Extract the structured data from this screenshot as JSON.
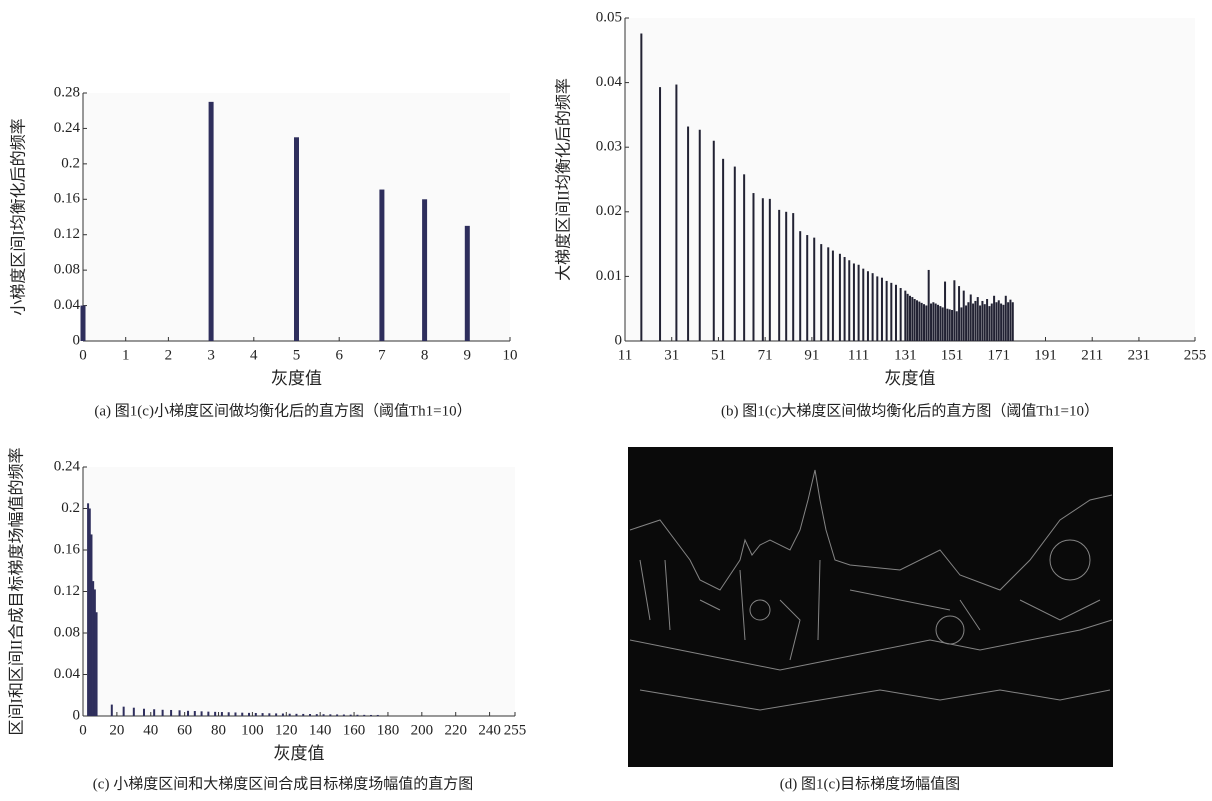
{
  "chart_data": [
    {
      "type": "bar",
      "title": "(a) 图1(c)小梯度区间做均衡化后的直方图（阈值Th1=10）",
      "xlabel": "灰度值",
      "ylabel": "小梯度区间I均衡化后的频率",
      "x": [
        0,
        3,
        5,
        7,
        8,
        9
      ],
      "values": [
        0.04,
        0.27,
        0.23,
        0.171,
        0.16,
        0.13
      ],
      "color": "#2e2e5c",
      "xlim": [
        0,
        10
      ],
      "xticks": [
        0,
        1,
        2,
        3,
        4,
        5,
        6,
        7,
        8,
        9,
        10
      ],
      "ylim": [
        0,
        0.28
      ],
      "yticks": [
        0,
        0.04,
        0.08,
        0.12,
        0.16,
        0.2,
        0.24,
        0.28
      ]
    },
    {
      "type": "bar",
      "title": "(b) 图1(c)大梯度区间做均衡化后的直方图（阈值Th1=10）",
      "xlabel": "灰度值",
      "ylabel": "大梯度区间II均衡化后的频率",
      "x": [
        18,
        26,
        33,
        38,
        43,
        49,
        53,
        58,
        62,
        66,
        70,
        73,
        77,
        80,
        83,
        86,
        89,
        92,
        95,
        98,
        100,
        103,
        105,
        107,
        109,
        111,
        113,
        115,
        117,
        119,
        121,
        123,
        125,
        127,
        129,
        131,
        132,
        133,
        134,
        135,
        136,
        137,
        138,
        139,
        140,
        141,
        142,
        143,
        144,
        145,
        146,
        147,
        148,
        149,
        150,
        151,
        152,
        153,
        154,
        155,
        156,
        157,
        158,
        159,
        160,
        161,
        162,
        163,
        164,
        165,
        166,
        167,
        168,
        169,
        170,
        171,
        172,
        173,
        174,
        175,
        176,
        177
      ],
      "values": [
        0.0476,
        0.0393,
        0.0397,
        0.0332,
        0.0327,
        0.031,
        0.0282,
        0.027,
        0.0258,
        0.0229,
        0.0221,
        0.022,
        0.0203,
        0.02,
        0.0198,
        0.017,
        0.0164,
        0.016,
        0.015,
        0.0145,
        0.014,
        0.0135,
        0.013,
        0.0125,
        0.012,
        0.0118,
        0.0112,
        0.0108,
        0.0105,
        0.01,
        0.0098,
        0.0093,
        0.009,
        0.0087,
        0.0082,
        0.0078,
        0.0073,
        0.007,
        0.0068,
        0.0065,
        0.0063,
        0.0061,
        0.0059,
        0.0057,
        0.0055,
        0.011,
        0.0058,
        0.006,
        0.0058,
        0.0056,
        0.0054,
        0.0052,
        0.0092,
        0.005,
        0.0049,
        0.0048,
        0.0094,
        0.0046,
        0.0085,
        0.0052,
        0.0078,
        0.0055,
        0.006,
        0.0072,
        0.0058,
        0.0062,
        0.0068,
        0.0055,
        0.0062,
        0.0057,
        0.0065,
        0.0054,
        0.0058,
        0.007,
        0.006,
        0.0063,
        0.0058,
        0.0056,
        0.007,
        0.006,
        0.0064,
        0.006
      ],
      "color": "#222233",
      "xlim": [
        11,
        255
      ],
      "xticks": [
        11,
        31,
        51,
        71,
        91,
        111,
        131,
        151,
        171,
        191,
        211,
        231,
        255
      ],
      "ylim": [
        0,
        0.05
      ],
      "yticks": [
        0,
        0.01,
        0.02,
        0.03,
        0.04,
        0.05
      ]
    },
    {
      "type": "bar",
      "title": "(c) 小梯度区间和大梯度区间合成目标梯度场幅值的直方图",
      "xlabel": "灰度值",
      "ylabel": "区间I和区间II合成目标梯度场幅值的频率",
      "x": [
        3,
        4,
        5,
        6,
        7,
        8,
        17,
        24,
        30,
        36,
        42,
        47,
        52,
        57,
        62,
        66,
        70,
        74,
        78,
        82,
        86,
        90,
        94,
        98,
        102,
        106,
        110,
        114,
        118,
        122,
        126,
        130,
        134,
        138,
        142,
        146,
        150,
        154,
        158,
        162,
        166,
        170,
        174
      ],
      "values": [
        0.205,
        0.2,
        0.175,
        0.13,
        0.122,
        0.1,
        0.011,
        0.009,
        0.008,
        0.007,
        0.0065,
        0.006,
        0.0058,
        0.0055,
        0.005,
        0.0048,
        0.0045,
        0.0042,
        0.004,
        0.0038,
        0.0036,
        0.0034,
        0.0032,
        0.003,
        0.0029,
        0.0028,
        0.0026,
        0.0025,
        0.0024,
        0.0022,
        0.0021,
        0.002,
        0.0019,
        0.0018,
        0.0017,
        0.0016,
        0.0015,
        0.0014,
        0.0013,
        0.0012,
        0.0011,
        0.001,
        0.001
      ],
      "color": "#2e2e5c",
      "xlim": [
        0,
        255
      ],
      "xticks": [
        0,
        20,
        40,
        60,
        80,
        100,
        120,
        140,
        160,
        180,
        200,
        220,
        240,
        255
      ],
      "ylim": [
        0,
        0.24
      ],
      "yticks": [
        0,
        0.04,
        0.08,
        0.12,
        0.16,
        0.2,
        0.24
      ]
    }
  ],
  "image_panel": {
    "caption": "(d) 图1(c)目标梯度场幅值图"
  }
}
